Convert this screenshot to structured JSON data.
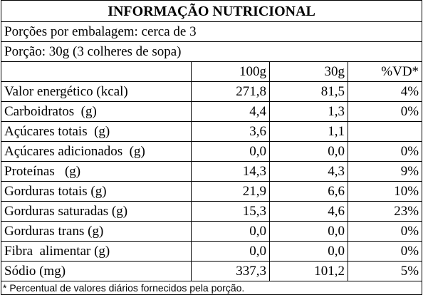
{
  "title": "INFORMAÇÃO NUTRICIONAL",
  "servings_per_package": "Porções por embalagem: cerca de 3",
  "serving_size": "Porção: 30g (3 colheres de sopa)",
  "table": {
    "header": [
      "100g",
      "30g",
      "%VD*"
    ],
    "rows": [
      [
        "Valor energético (kcal)",
        "271,8",
        "81,5",
        "4%"
      ],
      [
        "Carboidratos  (g)",
        "4,4",
        "1,3",
        "0%"
      ],
      [
        "Açúcares totais  (g)",
        "3,6",
        "1,1",
        null
      ],
      [
        "Açúcares adicionados  (g)",
        "0,0",
        "0,0",
        "0%"
      ],
      [
        "Proteínas   (g)",
        "14,3",
        "4,3",
        "9%"
      ],
      [
        "Gorduras totais (g)",
        "21,9",
        "6,6",
        "10%"
      ],
      [
        "Gorduras saturadas (g)",
        "15,3",
        "4,6",
        "23%"
      ],
      [
        "Gorduras trans (g)",
        "0,0",
        "0,0",
        "0%"
      ],
      [
        "Fibra  alimentar (g)",
        "0,0",
        "0,0",
        "0%"
      ],
      [
        "Sódio (mg)",
        "337,3",
        "101,2",
        "5%"
      ]
    ]
  },
  "footnote": "* Percentual de valores diários fornecidos pela porção."
}
